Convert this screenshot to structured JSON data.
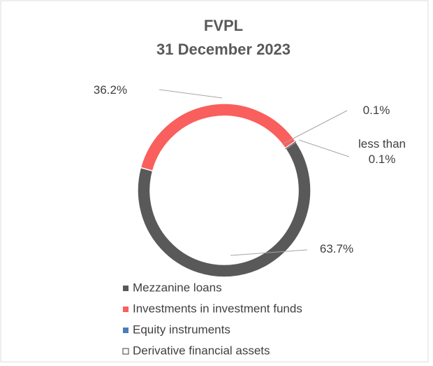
{
  "chart_data": {
    "type": "donut",
    "title": "FVPL",
    "subtitle": "31 December 2023",
    "categories": [
      "Mezzanine loans",
      "Investments in investment funds",
      "Equity instruments",
      "Derivative financial assets"
    ],
    "values": [
      63.7,
      36.2,
      0.1,
      0.05
    ],
    "value_labels": [
      "63.7%",
      "36.2%",
      "0.1%",
      "less than 0.1%"
    ],
    "colors": [
      "#595959",
      "#f95f5c",
      "#4a7ebb",
      "#ffffff"
    ],
    "legend": "bottom"
  }
}
